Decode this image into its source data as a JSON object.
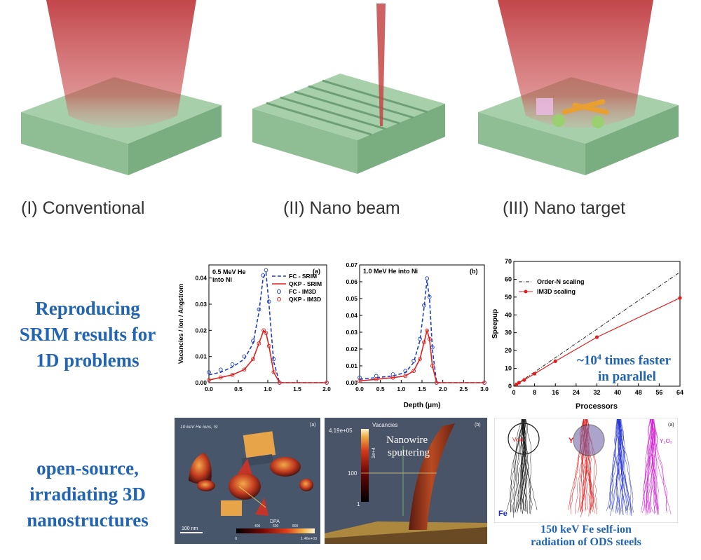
{
  "schematics": {
    "captions": [
      "(I) Conventional",
      "(II) Nano beam",
      "(III) Nano target"
    ]
  },
  "rows": {
    "row1_text": [
      "Reproducing",
      "SRIM results for",
      "1D problems"
    ],
    "row2_text": [
      "open-source,",
      "irradiating 3D",
      "nanostructures"
    ]
  },
  "colors": {
    "heading_blue": "#2164b4",
    "substrate_green": "#9fc9a4",
    "beam_red": "#c0393b",
    "series_blue": "#1f3fbf",
    "series_red": "#e02020"
  },
  "plot_a": {
    "label": "(a)",
    "annotation": [
      "0.5 MeV He",
      "into Ni"
    ],
    "ylabel": "Vacancies / Ion / Angstrom",
    "xticks": [
      "0.0",
      "0.5",
      "1.0",
      "1.5",
      "2.0"
    ],
    "yticks": [
      "0.00",
      "0.01",
      "0.02",
      "0.03",
      "0.04"
    ],
    "legend": [
      "FC - SRIM",
      "QKP - SRIM",
      "FC - IM3D",
      "QKP - IM3D"
    ]
  },
  "plot_b": {
    "label": "(b)",
    "annotation": "1.0 MeV He into Ni",
    "xlabel": "Depth (μm)",
    "xticks": [
      "0.0",
      "0.5",
      "1.0",
      "1.5",
      "2.0",
      "2.5",
      "3.0"
    ],
    "yticks": [
      "0.00",
      "0.01",
      "0.02",
      "0.03",
      "0.04",
      "0.05",
      "0.06",
      "0.07"
    ]
  },
  "plot_c": {
    "ylabel": "Speepup",
    "xlabel": "Processors",
    "xticks": [
      "0",
      "8",
      "16",
      "24",
      "32",
      "40",
      "48",
      "56",
      "64"
    ],
    "yticks": [
      "0",
      "10",
      "20",
      "30",
      "40",
      "50",
      "60",
      "70"
    ],
    "legend": [
      "Order-N scaling",
      "IM3D scaling"
    ],
    "annotation_line1": "~10",
    "annotation_sup": "4",
    "annotation_tail": " times faster",
    "annotation_line2": "in parallel"
  },
  "render_a": {
    "label": "(a)",
    "title": "10 keV He ions, Si",
    "scalebar": "100 nm",
    "colorbar_title": "DPA",
    "colorbar_ticks": [
      "0",
      "400",
      "600",
      "800",
      "1.46e+03"
    ]
  },
  "render_b": {
    "label": "(b)",
    "colorbar_title": "Vacancies",
    "colorbar_max": "4.19e+05",
    "colorbar_ticks": [
      "1e+4",
      "100",
      "1"
    ],
    "annotation_line1": "Nanowire",
    "annotation_line2": "sputtering"
  },
  "render_c": {
    "label": "(a)",
    "labels": [
      "Void",
      "Y",
      "Y₂O₃",
      "Fe"
    ],
    "caption_line1": "150 keV Fe self-ion",
    "caption_line2": "radiation of ODS steels"
  },
  "chart_data": [
    {
      "type": "line",
      "title": "0.5 MeV He into Ni",
      "xlabel": "",
      "ylabel": "Vacancies / Ion / Angstrom",
      "xlim": [
        0,
        2.0
      ],
      "ylim": [
        0,
        0.045
      ],
      "series": [
        {
          "name": "FC - SRIM",
          "x": [
            0.0,
            0.2,
            0.4,
            0.6,
            0.75,
            0.85,
            0.92,
            0.97,
            1.02,
            1.1,
            1.2,
            2.0
          ],
          "y": [
            0.003,
            0.004,
            0.006,
            0.009,
            0.015,
            0.027,
            0.04,
            0.042,
            0.03,
            0.008,
            0.0,
            0.0
          ]
        },
        {
          "name": "QKP - SRIM",
          "x": [
            0.0,
            0.2,
            0.4,
            0.6,
            0.75,
            0.85,
            0.93,
            0.97,
            1.02,
            1.1,
            1.2,
            2.0
          ],
          "y": [
            0.001,
            0.002,
            0.003,
            0.005,
            0.009,
            0.015,
            0.02,
            0.019,
            0.014,
            0.004,
            0.0,
            0.0
          ]
        },
        {
          "name": "FC - IM3D",
          "x": [
            0.0,
            0.2,
            0.4,
            0.6,
            0.75,
            0.85,
            0.92,
            0.97,
            1.02,
            1.1,
            1.2,
            2.0
          ],
          "y": [
            0.004,
            0.005,
            0.007,
            0.01,
            0.016,
            0.028,
            0.041,
            0.043,
            0.031,
            0.009,
            0.0,
            0.0
          ]
        },
        {
          "name": "QKP - IM3D",
          "x": [
            0.0,
            0.2,
            0.4,
            0.6,
            0.75,
            0.85,
            0.93,
            0.97,
            1.02,
            1.1,
            1.2,
            2.0
          ],
          "y": [
            0.001,
            0.002,
            0.003,
            0.005,
            0.009,
            0.015,
            0.02,
            0.019,
            0.014,
            0.004,
            0.0,
            0.0
          ]
        }
      ]
    },
    {
      "type": "line",
      "title": "1.0 MeV He into Ni",
      "xlabel": "Depth (μm)",
      "ylabel": "",
      "xlim": [
        0,
        3.0
      ],
      "ylim": [
        0,
        0.07
      ],
      "series": [
        {
          "name": "FC - SRIM",
          "x": [
            0.0,
            0.4,
            0.8,
            1.1,
            1.3,
            1.45,
            1.55,
            1.62,
            1.68,
            1.75,
            1.85,
            3.0
          ],
          "y": [
            0.002,
            0.003,
            0.004,
            0.006,
            0.012,
            0.025,
            0.045,
            0.061,
            0.05,
            0.02,
            0.0,
            0.0
          ]
        },
        {
          "name": "QKP - SRIM",
          "x": [
            0.0,
            0.4,
            0.8,
            1.1,
            1.3,
            1.45,
            1.55,
            1.62,
            1.68,
            1.75,
            1.85,
            3.0
          ],
          "y": [
            0.001,
            0.002,
            0.003,
            0.004,
            0.007,
            0.014,
            0.024,
            0.031,
            0.026,
            0.01,
            0.0,
            0.0
          ]
        },
        {
          "name": "FC - IM3D",
          "x": [
            0.0,
            0.4,
            0.8,
            1.1,
            1.3,
            1.45,
            1.55,
            1.62,
            1.68,
            1.75,
            1.85,
            3.0
          ],
          "y": [
            0.003,
            0.004,
            0.005,
            0.007,
            0.013,
            0.026,
            0.046,
            0.062,
            0.051,
            0.021,
            0.0,
            0.0
          ]
        },
        {
          "name": "QKP - IM3D",
          "x": [
            0.0,
            0.4,
            0.8,
            1.1,
            1.3,
            1.45,
            1.55,
            1.62,
            1.68,
            1.75,
            1.85,
            3.0
          ],
          "y": [
            0.001,
            0.002,
            0.003,
            0.004,
            0.007,
            0.014,
            0.024,
            0.031,
            0.026,
            0.01,
            0.0,
            0.0
          ]
        }
      ]
    },
    {
      "type": "line",
      "title": "",
      "xlabel": "Processors",
      "ylabel": "Speepup",
      "xlim": [
        0,
        64
      ],
      "ylim": [
        0,
        70
      ],
      "series": [
        {
          "name": "Order-N scaling",
          "x": [
            0,
            64
          ],
          "y": [
            0,
            64
          ]
        },
        {
          "name": "IM3D scaling",
          "x": [
            1,
            2,
            4,
            8,
            16,
            32,
            64
          ],
          "y": [
            1,
            2,
            3.5,
            7,
            14,
            27.5,
            49.5
          ]
        }
      ]
    }
  ]
}
